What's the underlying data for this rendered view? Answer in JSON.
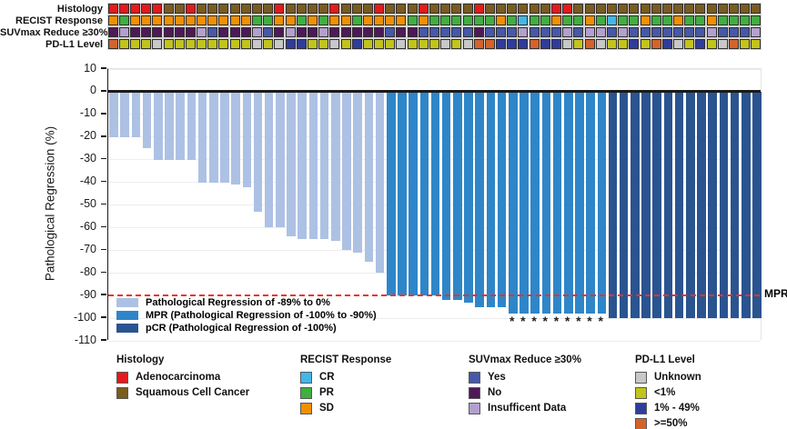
{
  "colors": {
    "adeno": "#e41a1b",
    "squamous": "#7a5c21",
    "cr": "#41b8e8",
    "pr": "#3faf3f",
    "sd": "#f09000",
    "suv_yes": "#4658a8",
    "suv_no": "#4e1958",
    "suv_insufficient": "#b3a0ce",
    "pdl1_unknown": "#c8c8c8",
    "pdl1_lt1": "#c2c41c",
    "pdl1_1to49": "#303c9c",
    "pdl1_ge50": "#d4632b",
    "bar_light": "#adc1e4",
    "bar_mpr": "#2e86c9",
    "bar_pcr": "#2a5490",
    "threshold_red": "#e8352b"
  },
  "tracks": {
    "rows": [
      {
        "label": "Histology",
        "cells": [
          "adeno",
          "adeno",
          "adeno",
          "adeno",
          "adeno",
          "squamous",
          "squamous",
          "adeno",
          "squamous",
          "squamous",
          "squamous",
          "squamous",
          "squamous",
          "squamous",
          "squamous",
          "adeno",
          "squamous",
          "squamous",
          "squamous",
          "squamous",
          "adeno",
          "squamous",
          "squamous",
          "squamous",
          "adeno",
          "squamous",
          "squamous",
          "squamous",
          "adeno",
          "squamous",
          "squamous",
          "squamous",
          "squamous",
          "adeno",
          "squamous",
          "squamous",
          "squamous",
          "squamous",
          "squamous",
          "squamous",
          "adeno",
          "adeno",
          "squamous",
          "squamous",
          "squamous",
          "squamous",
          "squamous",
          "squamous",
          "squamous",
          "squamous",
          "squamous",
          "squamous",
          "squamous",
          "squamous",
          "squamous",
          "squamous",
          "squamous",
          "squamous",
          "squamous"
        ]
      },
      {
        "label": "RECIST Response",
        "cells": [
          "sd",
          "pr",
          "sd",
          "sd",
          "sd",
          "sd",
          "sd",
          "sd",
          "sd",
          "sd",
          "sd",
          "sd",
          "sd",
          "pr",
          "pr",
          "sd",
          "sd",
          "pr",
          "sd",
          "pr",
          "sd",
          "sd",
          "pr",
          "sd",
          "sd",
          "sd",
          "sd",
          "pr",
          "sd",
          "pr",
          "pr",
          "pr",
          "pr",
          "pr",
          "pr",
          "sd",
          "pr",
          "cr",
          "pr",
          "pr",
          "sd",
          "pr",
          "pr",
          "sd",
          "pr",
          "cr",
          "pr",
          "pr",
          "sd",
          "pr",
          "pr",
          "sd",
          "pr",
          "pr",
          "sd",
          "pr",
          "pr",
          "pr",
          "pr"
        ]
      },
      {
        "label": "SUVmax Reduce ≥30%",
        "cells": [
          "suv_no",
          "suv_insufficient",
          "suv_no",
          "suv_no",
          "suv_no",
          "suv_no",
          "suv_no",
          "suv_no",
          "suv_insufficient",
          "suv_yes",
          "suv_no",
          "suv_no",
          "suv_no",
          "suv_insufficient",
          "suv_yes",
          "suv_no",
          "suv_insufficient",
          "suv_no",
          "suv_no",
          "suv_insufficient",
          "suv_no",
          "suv_no",
          "suv_no",
          "suv_no",
          "suv_no",
          "suv_yes",
          "suv_no",
          "suv_no",
          "suv_yes",
          "suv_yes",
          "suv_yes",
          "suv_yes",
          "suv_yes",
          "suv_no",
          "suv_yes",
          "suv_yes",
          "suv_yes",
          "suv_insufficient",
          "suv_yes",
          "suv_yes",
          "suv_yes",
          "suv_insufficient",
          "suv_yes",
          "suv_insufficient",
          "suv_insufficient",
          "suv_yes",
          "suv_insufficient",
          "suv_yes",
          "suv_yes",
          "suv_yes",
          "suv_yes",
          "suv_yes",
          "suv_yes",
          "suv_yes",
          "suv_insufficient",
          "suv_yes",
          "suv_yes",
          "suv_yes",
          "suv_insufficient"
        ]
      },
      {
        "label": "PD-L1 Level",
        "cells": [
          "pdl1_ge50",
          "pdl1_lt1",
          "pdl1_lt1",
          "pdl1_lt1",
          "pdl1_unknown",
          "pdl1_lt1",
          "pdl1_lt1",
          "pdl1_lt1",
          "pdl1_lt1",
          "pdl1_lt1",
          "pdl1_lt1",
          "pdl1_lt1",
          "pdl1_lt1",
          "pdl1_unknown",
          "pdl1_lt1",
          "pdl1_unknown",
          "pdl1_1to49",
          "pdl1_1to49",
          "pdl1_lt1",
          "pdl1_lt1",
          "pdl1_unknown",
          "pdl1_lt1",
          "pdl1_1to49",
          "pdl1_lt1",
          "pdl1_lt1",
          "pdl1_lt1",
          "pdl1_unknown",
          "pdl1_lt1",
          "pdl1_lt1",
          "pdl1_lt1",
          "pdl1_unknown",
          "pdl1_lt1",
          "pdl1_unknown",
          "pdl1_ge50",
          "pdl1_ge50",
          "pdl1_1to49",
          "pdl1_1to49",
          "pdl1_1to49",
          "pdl1_ge50",
          "pdl1_1to49",
          "pdl1_1to49",
          "pdl1_unknown",
          "pdl1_lt1",
          "pdl1_ge50",
          "pdl1_unknown",
          "pdl1_lt1",
          "pdl1_lt1",
          "pdl1_1to49",
          "pdl1_lt1",
          "pdl1_ge50",
          "pdl1_1to49",
          "pdl1_unknown",
          "pdl1_lt1",
          "pdl1_1to49",
          "pdl1_lt1",
          "pdl1_unknown",
          "pdl1_ge50",
          "pdl1_lt1",
          "pdl1_lt1"
        ]
      }
    ]
  },
  "chart_data": {
    "type": "bar",
    "title": "",
    "xlabel": "",
    "ylabel": "Pathological Regression (%)",
    "ylim": [
      -110,
      10
    ],
    "yticks": [
      10,
      0,
      -10,
      -20,
      -30,
      -40,
      -50,
      -60,
      -70,
      -80,
      -90,
      -100,
      -110
    ],
    "grid": true,
    "n_patients": 59,
    "values": [
      -20,
      -20,
      -20,
      -25,
      -30,
      -30,
      -30,
      -30,
      -40,
      -40,
      -40,
      -41,
      -42,
      -53,
      -60,
      -60,
      -64,
      -65,
      -65,
      -65,
      -66,
      -70,
      -71,
      -75,
      -80,
      -90,
      -90,
      -90,
      -90,
      -90,
      -92,
      -92,
      -93,
      -95,
      -95,
      -95,
      -98,
      -98,
      -98,
      -98,
      -98,
      -98,
      -98,
      -98,
      -98,
      -100,
      -100,
      -100,
      -100,
      -100,
      -100,
      -100,
      -100,
      -100,
      -100,
      -100,
      -100,
      -100,
      -100
    ],
    "group_thresholds": {
      "pcr_at_or_below": -100,
      "mpr_at_or_below": -90
    },
    "threshold": {
      "y": -90,
      "label": "MPR"
    },
    "asterisk_bars": [
      37,
      38,
      39,
      40,
      41,
      42,
      43,
      44,
      45
    ],
    "legend": [
      {
        "key": "bar_light",
        "label": "Pathological Regression of -89% to 0%"
      },
      {
        "key": "bar_mpr",
        "label": "MPR (Pathological Regression of -100% to -90%)"
      },
      {
        "key": "bar_pcr",
        "label": "pCR (Pathological Regression of -100%)"
      }
    ],
    "legend_position": "lower left inside plot"
  },
  "bottom_legends": [
    {
      "title": "Histology",
      "items": [
        {
          "key": "adeno",
          "label": "Adenocarcinoma"
        },
        {
          "key": "squamous",
          "label": "Squamous Cell Cancer"
        }
      ]
    },
    {
      "title": "RECIST Response",
      "items": [
        {
          "key": "cr",
          "label": "CR"
        },
        {
          "key": "pr",
          "label": "PR"
        },
        {
          "key": "sd",
          "label": "SD"
        }
      ]
    },
    {
      "title": "SUVmax Reduce ≥30%",
      "items": [
        {
          "key": "suv_yes",
          "label": "Yes"
        },
        {
          "key": "suv_no",
          "label": "No"
        },
        {
          "key": "suv_insufficient",
          "label": "Insufficent Data"
        }
      ]
    },
    {
      "title": "PD-L1 Level",
      "items": [
        {
          "key": "pdl1_unknown",
          "label": "Unknown"
        },
        {
          "key": "pdl1_lt1",
          "label": "<1%"
        },
        {
          "key": "pdl1_1to49",
          "label": "1% - 49%"
        },
        {
          "key": "pdl1_ge50",
          "label": ">=50%"
        }
      ]
    }
  ]
}
